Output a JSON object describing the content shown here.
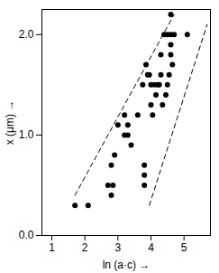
{
  "chart_data": {
    "type": "scatter",
    "x_label": "ln (a·c)",
    "y_label": "x (μm)",
    "xlim": [
      0.7,
      5.8
    ],
    "ylim": [
      0,
      2.25
    ],
    "xticks": [
      1,
      2,
      3,
      4,
      5
    ],
    "yticks": [
      {
        "value": 0,
        "label": "0.0"
      },
      {
        "value": 1,
        "label": "1.0"
      },
      {
        "value": 2,
        "label": "2.0"
      }
    ],
    "grid": false,
    "series": [
      {
        "type": "scatter",
        "color": "#000000",
        "marker": "circle",
        "x": [
          1.7,
          2.1,
          2.7,
          2.8,
          2.8,
          2.85,
          2.9,
          3.0,
          3.2,
          3.2,
          3.3,
          3.3,
          3.4,
          3.6,
          3.8,
          3.8,
          3.8,
          3.75,
          3.85,
          3.9,
          3.95,
          4.0,
          4.0,
          4.05,
          4.1,
          4.15,
          4.2,
          4.25,
          4.3,
          4.3,
          4.35,
          4.4,
          4.45,
          4.5,
          4.55,
          4.6,
          4.6,
          4.6,
          4.65,
          4.7,
          4.6,
          5.1,
          4.5
        ],
        "values": [
          0.3,
          0.3,
          0.5,
          0.7,
          0.4,
          0.5,
          0.8,
          1.1,
          1.2,
          1.0,
          1.0,
          1.1,
          0.9,
          1.2,
          0.7,
          0.6,
          0.5,
          1.5,
          1.7,
          1.6,
          1.6,
          1.5,
          1.3,
          1.2,
          1.5,
          1.4,
          1.5,
          1.5,
          1.8,
          1.6,
          1.3,
          2.0,
          1.4,
          1.5,
          1.6,
          1.8,
          2.2,
          2.0,
          1.7,
          2.0,
          1.9,
          2.0,
          2.0
        ]
      },
      {
        "type": "line",
        "color": "#000000",
        "line_style": "dashed",
        "x": [
          1.7,
          4.7
        ],
        "values": [
          0.4,
          2.2
        ]
      },
      {
        "type": "line",
        "color": "#000000",
        "line_style": "dashed",
        "x": [
          3.95,
          5.7
        ],
        "values": [
          0.3,
          2.1
        ]
      }
    ]
  }
}
